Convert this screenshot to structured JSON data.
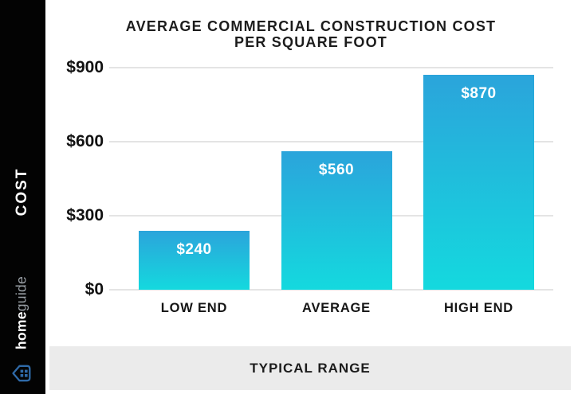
{
  "sidebar": {
    "axis_label": "COST",
    "logo": {
      "home": "home",
      "guide": "guide"
    }
  },
  "chart_data": {
    "type": "bar",
    "title": "AVERAGE COMMERCIAL CONSTRUCTION COST PER SQUARE FOOT",
    "title_lines": [
      "AVERAGE COMMERCIAL CONSTRUCTION COST",
      "PER SQUARE FOOT"
    ],
    "categories": [
      "LOW END",
      "AVERAGE",
      "HIGH END"
    ],
    "values": [
      240,
      560,
      870
    ],
    "value_labels": [
      "$240",
      "$560",
      "$870"
    ],
    "ylabel": "COST",
    "xlabel": "TYPICAL RANGE",
    "ylim": [
      0,
      900
    ],
    "yticks": [
      900,
      600,
      300,
      0
    ],
    "ytick_labels": [
      "$900",
      "$600",
      "$300",
      "$0"
    ],
    "grid": true,
    "legend": false,
    "bar_color_top": "#2BA4DB",
    "bar_color_bottom": "#14D9DE"
  },
  "footer": {
    "label": "TYPICAL RANGE"
  },
  "colors": {
    "sidebar_bg": "#030303",
    "footer_bg": "#EBEBEB",
    "gridline": "#E4E4E4",
    "title_text": "#1C1C1C",
    "bar_label_text": "#FFFFFF",
    "logo_home_text": "#FFFFFF",
    "logo_guide_text": "#9AA0A6",
    "logo_icon_blue": "#2F6AA8"
  }
}
